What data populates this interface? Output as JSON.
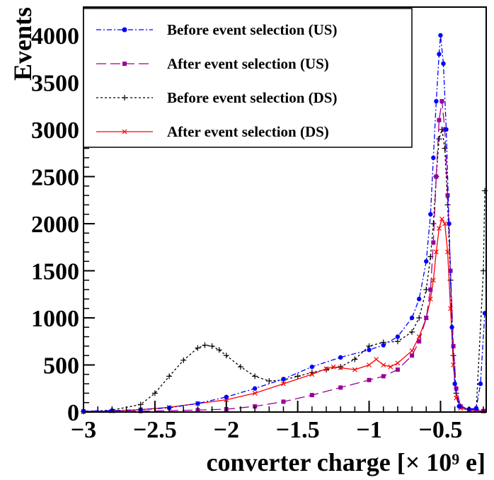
{
  "chart_data": {
    "type": "line",
    "xlabel": "converter charge [× 10⁹ e]",
    "ylabel": "Events",
    "xlim": [
      -3.0,
      -0.18
    ],
    "ylim": [
      0,
      4300
    ],
    "x_ticks": [
      {
        "value": -3,
        "label": "−3"
      },
      {
        "value": -2.5,
        "label": "−2.5"
      },
      {
        "value": -2,
        "label": "−2"
      },
      {
        "value": -1.5,
        "label": "−1.5"
      },
      {
        "value": -1,
        "label": "−1"
      },
      {
        "value": -0.5,
        "label": "−0.5"
      }
    ],
    "y_ticks": [
      0,
      500,
      1000,
      1500,
      2000,
      2500,
      3000,
      3500,
      4000
    ],
    "y_tick_labels": [
      "0",
      "500",
      "1000",
      "1500",
      "2000",
      "2500",
      "3000",
      "3500",
      "4000"
    ],
    "legend_position": "top-left",
    "series": [
      {
        "name": "Before event selection (US)",
        "color": "#0000ff",
        "marker": "circle",
        "dash": "dash-dot",
        "x": [
          -3.0,
          -2.8,
          -2.6,
          -2.4,
          -2.2,
          -2.0,
          -1.8,
          -1.6,
          -1.4,
          -1.2,
          -1.0,
          -0.9,
          -0.8,
          -0.7,
          -0.65,
          -0.6,
          -0.57,
          -0.55,
          -0.53,
          -0.51,
          -0.5,
          -0.48,
          -0.46,
          -0.44,
          -0.42,
          -0.4,
          -0.37,
          -0.3,
          -0.25,
          -0.22,
          -0.19
        ],
        "y": [
          10,
          15,
          25,
          45,
          90,
          160,
          250,
          350,
          480,
          580,
          660,
          710,
          800,
          1000,
          1200,
          1600,
          2100,
          2700,
          3300,
          3800,
          4000,
          3700,
          3000,
          2000,
          900,
          300,
          60,
          30,
          40,
          300,
          1050
        ]
      },
      {
        "name": "After event selection (US)",
        "color": "#990099",
        "marker": "square",
        "dash": "long-dash",
        "x": [
          -3.0,
          -2.6,
          -2.2,
          -2.0,
          -1.8,
          -1.6,
          -1.4,
          -1.2,
          -1.0,
          -0.9,
          -0.8,
          -0.7,
          -0.65,
          -0.6,
          -0.57,
          -0.55,
          -0.53,
          -0.51,
          -0.49,
          -0.47,
          -0.45,
          -0.43,
          -0.41,
          -0.39,
          -0.36,
          -0.3,
          -0.25,
          -0.2
        ],
        "y": [
          5,
          10,
          20,
          30,
          60,
          110,
          180,
          260,
          340,
          380,
          450,
          600,
          750,
          1000,
          1300,
          1800,
          2500,
          3100,
          3300,
          3000,
          2300,
          1500,
          700,
          250,
          60,
          20,
          15,
          10
        ]
      },
      {
        "name": "Before event selection (DS)",
        "color": "#000000",
        "marker": "plus",
        "dash": "dotted",
        "x": [
          -3.0,
          -2.8,
          -2.6,
          -2.5,
          -2.4,
          -2.3,
          -2.2,
          -2.15,
          -2.1,
          -2.05,
          -2.0,
          -1.9,
          -1.8,
          -1.7,
          -1.6,
          -1.5,
          -1.4,
          -1.3,
          -1.2,
          -1.1,
          -1.0,
          -0.9,
          -0.8,
          -0.7,
          -0.65,
          -0.6,
          -0.57,
          -0.55,
          -0.53,
          -0.51,
          -0.49,
          -0.47,
          -0.45,
          -0.43,
          -0.41,
          -0.39,
          -0.36,
          -0.3,
          -0.25,
          -0.2,
          -0.19
        ],
        "y": [
          5,
          20,
          80,
          200,
          380,
          550,
          680,
          710,
          700,
          660,
          600,
          480,
          380,
          330,
          340,
          380,
          420,
          450,
          480,
          560,
          700,
          740,
          750,
          850,
          1000,
          1300,
          1650,
          2000,
          2500,
          2900,
          3000,
          2800,
          2200,
          1400,
          600,
          200,
          60,
          30,
          25,
          1500,
          2350
        ]
      },
      {
        "name": "After event selection (DS)",
        "color": "#ff0000",
        "marker": "cross",
        "dash": "solid",
        "x": [
          -3.0,
          -2.8,
          -2.6,
          -2.4,
          -2.2,
          -2.0,
          -1.8,
          -1.6,
          -1.4,
          -1.3,
          -1.25,
          -1.2,
          -1.1,
          -1.0,
          -0.95,
          -0.9,
          -0.85,
          -0.8,
          -0.7,
          -0.65,
          -0.6,
          -0.57,
          -0.55,
          -0.53,
          -0.51,
          -0.49,
          -0.47,
          -0.45,
          -0.43,
          -0.41,
          -0.39,
          -0.36,
          -0.3,
          -0.25,
          -0.2
        ],
        "y": [
          5,
          10,
          25,
          50,
          90,
          130,
          200,
          300,
          400,
          460,
          480,
          470,
          450,
          500,
          560,
          500,
          480,
          520,
          650,
          800,
          1000,
          1200,
          1400,
          1700,
          1950,
          2050,
          2000,
          1700,
          1100,
          500,
          150,
          40,
          20,
          15,
          10
        ]
      }
    ]
  }
}
